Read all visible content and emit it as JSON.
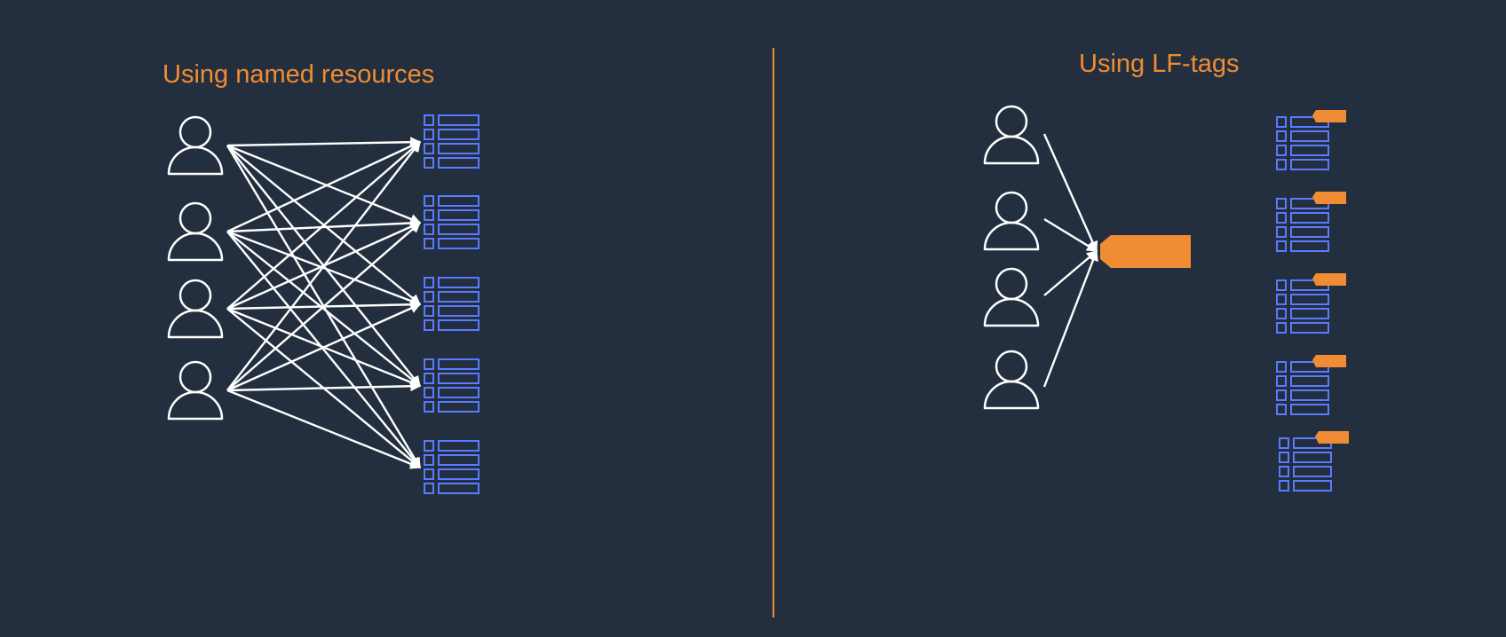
{
  "colors": {
    "background": "#232f3e",
    "accent": "#f08c33",
    "resource": "#5b7bff",
    "line": "#ffffff"
  },
  "left_panel": {
    "title": "Using named resources",
    "icons": {
      "user": "user-icon",
      "resource": "table-icon"
    },
    "users_count": 4,
    "resources_count": 5
  },
  "right_panel": {
    "title": "Using LF-tags",
    "icons": {
      "user": "user-icon",
      "tag": "tag-icon",
      "resource": "tagged-table-icon"
    },
    "users_count": 4,
    "resources_count": 5
  }
}
